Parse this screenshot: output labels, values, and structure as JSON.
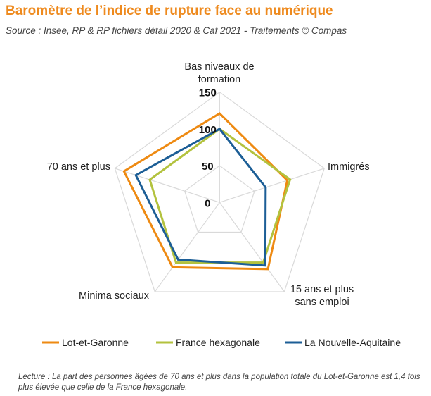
{
  "title": "Baromètre de l’indice de rupture face au numérique",
  "source": "Source : Insee, RP & RP fichiers détail 2020 & Caf 2021 - Traitements © Compas",
  "note": "Lecture : La part des personnes âgées de 70 ans et plus dans la population totale du Lot-et-Garonne est 1,4 fois plus élevée que celle de la France hexagonale.",
  "chart_data": {
    "type": "radar",
    "axes": [
      [
        "Bas niveaux de",
        "formation"
      ],
      [
        "Immigrés"
      ],
      [
        "15 ans et plus",
        "sans emploi"
      ],
      [
        "Minima sociaux"
      ],
      [
        "70 ans et plus"
      ]
    ],
    "ticks": [
      "0",
      "50",
      "100",
      "150"
    ],
    "tick_values": [
      0,
      50,
      100,
      150
    ],
    "rmax": 150,
    "legend_position": "bottom",
    "series": [
      {
        "name": "Lot-et-Garonne",
        "color": "#ee8a12",
        "values": [
          121,
          97,
          112,
          109,
          137
        ]
      },
      {
        "name": "France hexagonale",
        "color": "#b3c23e",
        "values": [
          100,
          101,
          101,
          101,
          100
        ]
      },
      {
        "name": "La Nouvelle-Aquitaine",
        "color": "#1c5e96",
        "values": [
          100,
          66,
          106,
          96,
          120
        ]
      }
    ]
  }
}
